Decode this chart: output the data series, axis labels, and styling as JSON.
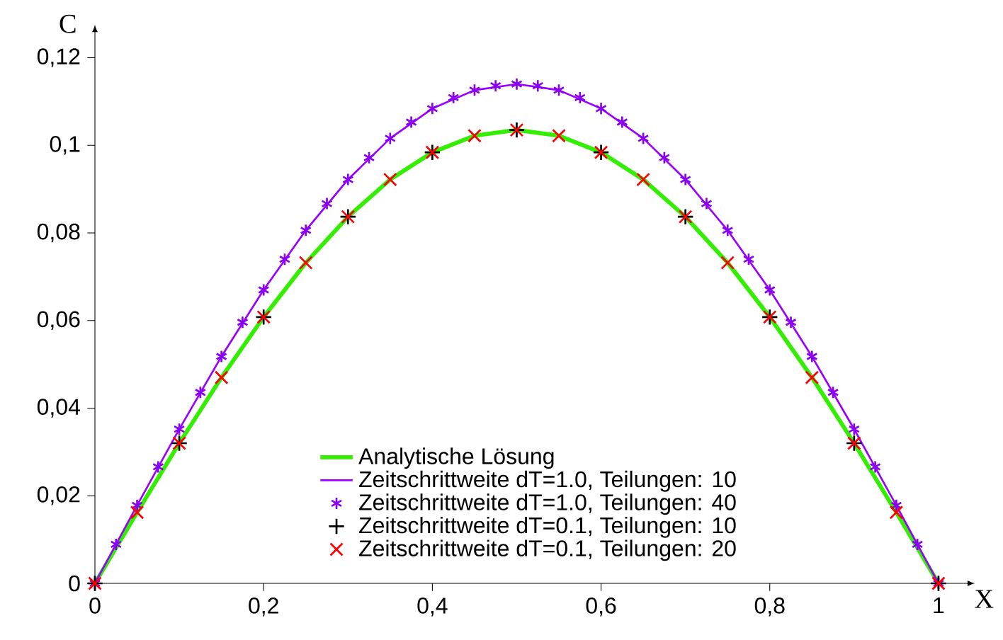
{
  "chart_data": {
    "type": "line",
    "xlabel": "X",
    "ylabel": "C",
    "xlim": [
      0,
      1.03
    ],
    "ylim": [
      0,
      0.125
    ],
    "xticks": [
      0,
      {
        "value": 0.2,
        "label": "0,2"
      },
      {
        "value": 0.4,
        "label": "0,4"
      },
      {
        "value": 0.6,
        "label": "0,6"
      },
      {
        "value": 0.8,
        "label": "0,8"
      },
      1
    ],
    "yticks": [
      0,
      {
        "value": 0.02,
        "label": "0,02"
      },
      {
        "value": 0.04,
        "label": "0,04"
      },
      {
        "value": 0.06,
        "label": "0,06"
      },
      {
        "value": 0.08,
        "label": "0,08"
      },
      {
        "value": 0.1,
        "label": "0,1"
      },
      {
        "value": 0.12,
        "label": "0,12"
      }
    ],
    "grid": false,
    "legend": "bottom",
    "series": [
      {
        "name": "Analytische Lösung",
        "type": "line",
        "color": "#33ee00",
        "x": [
          0,
          0.05,
          0.1,
          0.15,
          0.2,
          0.25,
          0.3,
          0.35,
          0.4,
          0.45,
          0.5,
          0.55,
          0.6,
          0.65,
          0.7,
          0.75,
          0.8,
          0.85,
          0.9,
          0.95,
          1
        ],
        "values": [
          0,
          0.0162,
          0.032,
          0.047,
          0.0608,
          0.0732,
          0.0837,
          0.0922,
          0.0984,
          0.1022,
          0.1035,
          0.1022,
          0.0984,
          0.0922,
          0.0837,
          0.0732,
          0.0608,
          0.047,
          0.032,
          0.0162,
          0
        ]
      },
      {
        "name": "Zeitschrittweite dT=1.0, Teilungen: 10",
        "type": "line",
        "color": "#9900ff",
        "x": [
          0,
          0.05,
          0.1,
          0.15,
          0.2,
          0.25,
          0.3,
          0.35,
          0.4,
          0.45,
          0.5,
          0.55,
          0.6,
          0.65,
          0.7,
          0.75,
          0.8,
          0.85,
          0.9,
          0.95,
          1
        ],
        "values": [
          0,
          0.0178,
          0.0352,
          0.0518,
          0.067,
          0.0806,
          0.0922,
          0.1016,
          0.1084,
          0.1126,
          0.114,
          0.1126,
          0.1084,
          0.1016,
          0.0922,
          0.0806,
          0.067,
          0.0518,
          0.0352,
          0.0178,
          0
        ]
      },
      {
        "name": "Zeitschrittweite dT=1.0, Teilungen: 40",
        "type": "scatter",
        "color": "#8800ee",
        "x": [
          0,
          0.025,
          0.05,
          0.075,
          0.1,
          0.125,
          0.15,
          0.175,
          0.2,
          0.225,
          0.25,
          0.275,
          0.3,
          0.325,
          0.35,
          0.375,
          0.4,
          0.425,
          0.45,
          0.475,
          0.5,
          0.525,
          0.55,
          0.575,
          0.6,
          0.625,
          0.65,
          0.675,
          0.7,
          0.725,
          0.75,
          0.775,
          0.8,
          0.825,
          0.85,
          0.875,
          0.9,
          0.925,
          0.95,
          0.975,
          1
        ],
        "values": [
          0,
          0.0089,
          0.0178,
          0.0266,
          0.0352,
          0.0436,
          0.0518,
          0.0596,
          0.067,
          0.074,
          0.0806,
          0.0867,
          0.0922,
          0.0972,
          0.1016,
          0.1053,
          0.1084,
          0.1109,
          0.1126,
          0.1136,
          0.114,
          0.1136,
          0.1126,
          0.1109,
          0.1084,
          0.1053,
          0.1016,
          0.0972,
          0.0922,
          0.0867,
          0.0806,
          0.074,
          0.067,
          0.0596,
          0.0518,
          0.0436,
          0.0352,
          0.0266,
          0.0178,
          0.0089,
          0
        ]
      },
      {
        "name": "Zeitschrittweite dT=0.1, Teilungen: 10",
        "type": "scatter",
        "marker": "plus",
        "color": "#000000",
        "x": [
          0,
          0.1,
          0.2,
          0.3,
          0.4,
          0.5,
          0.6,
          0.7,
          0.8,
          0.9,
          1
        ],
        "values": [
          0,
          0.032,
          0.0608,
          0.0837,
          0.0984,
          0.1035,
          0.0984,
          0.0837,
          0.0608,
          0.032,
          0
        ]
      },
      {
        "name": "Zeitschrittweite dT=0.1, Teilungen: 20",
        "type": "scatter",
        "marker": "cross",
        "color": "#ff0000",
        "x": [
          0,
          0.05,
          0.1,
          0.15,
          0.2,
          0.25,
          0.3,
          0.35,
          0.4,
          0.45,
          0.5,
          0.55,
          0.6,
          0.65,
          0.7,
          0.75,
          0.8,
          0.85,
          0.9,
          0.95,
          1
        ],
        "values": [
          0,
          0.0162,
          0.032,
          0.047,
          0.0608,
          0.0732,
          0.0837,
          0.0922,
          0.0984,
          0.1022,
          0.1035,
          0.1022,
          0.0984,
          0.0922,
          0.0837,
          0.0732,
          0.0608,
          0.047,
          0.032,
          0.0162,
          0
        ]
      }
    ]
  }
}
